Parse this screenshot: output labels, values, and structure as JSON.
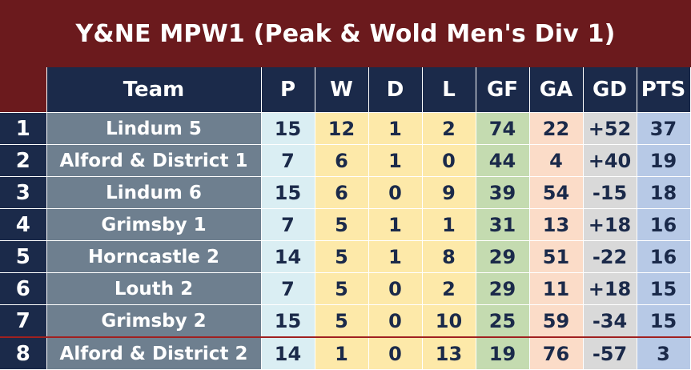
{
  "title": "Y&NE MPW1 (Peak & Wold Men's Div 1)",
  "headers": [
    "Team",
    "P",
    "W",
    "D",
    "L",
    "GF",
    "GA",
    "GD",
    "PTS"
  ],
  "rows": [
    {
      "rank": "1",
      "team": "Lindum 5",
      "p": "15",
      "w": "12",
      "d": "1",
      "l": "2",
      "gf": "74",
      "ga": "22",
      "gd": "+52",
      "pts": "37"
    },
    {
      "rank": "2",
      "team": "Alford & District 1",
      "p": "7",
      "w": "6",
      "d": "1",
      "l": "0",
      "gf": "44",
      "ga": "4",
      "gd": "+40",
      "pts": "19"
    },
    {
      "rank": "3",
      "team": "Lindum 6",
      "p": "15",
      "w": "6",
      "d": "0",
      "l": "9",
      "gf": "39",
      "ga": "54",
      "gd": "-15",
      "pts": "18"
    },
    {
      "rank": "4",
      "team": "Grimsby 1",
      "p": "7",
      "w": "5",
      "d": "1",
      "l": "1",
      "gf": "31",
      "ga": "13",
      "gd": "+18",
      "pts": "16"
    },
    {
      "rank": "5",
      "team": "Horncastle 2",
      "p": "14",
      "w": "5",
      "d": "1",
      "l": "8",
      "gf": "29",
      "ga": "51",
      "gd": "-22",
      "pts": "16"
    },
    {
      "rank": "6",
      "team": "Louth 2",
      "p": "7",
      "w": "5",
      "d": "0",
      "l": "2",
      "gf": "29",
      "ga": "11",
      "gd": "+18",
      "pts": "15"
    },
    {
      "rank": "7",
      "team": "Grimsby 2",
      "p": "15",
      "w": "5",
      "d": "0",
      "l": "10",
      "gf": "25",
      "ga": "59",
      "gd": "-34",
      "pts": "15"
    },
    {
      "rank": "8",
      "team": "Alford & District 2",
      "p": "14",
      "w": "1",
      "d": "0",
      "l": "13",
      "gf": "19",
      "ga": "76",
      "gd": "-57",
      "pts": "3"
    }
  ],
  "colors": {
    "frame": "#6b1a1d",
    "header": "#1b2a4a",
    "team_cell": "#6e7f8f",
    "played": "#daeef3",
    "results": "#fde9a9",
    "goals_for": "#c4dbb0",
    "goals_against": "#fbdcc8",
    "goal_diff": "#d9d9d9",
    "points": "#b7c9e6",
    "relegation_line": "#a02020"
  }
}
